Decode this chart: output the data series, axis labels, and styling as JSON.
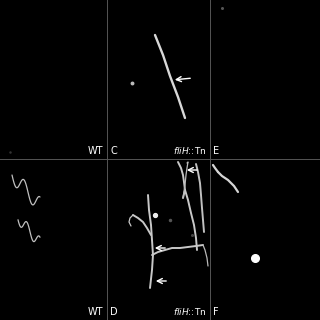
{
  "bg": "#000000",
  "tc": "#ffffff",
  "fig_w": 3.2,
  "fig_h": 3.2,
  "dpi": 100,
  "col_splits": [
    0.335,
    0.655
  ],
  "row_split": 0.497,
  "lw_bact": 1.4,
  "lw_thin": 0.9,
  "panels": {
    "A_label": "WT",
    "B_label": "C",
    "C_label": "fliH::Tn",
    "D_label": "E",
    "E_label": "WT",
    "F_label": "D",
    "G_label": "fliH::Tn",
    "H_label": "F"
  }
}
